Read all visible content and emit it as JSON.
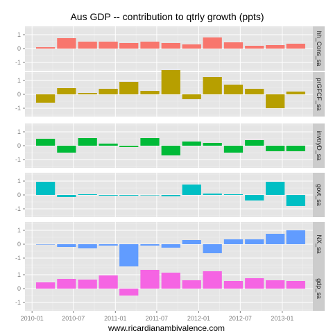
{
  "chart_data": {
    "type": "bar",
    "title": "Aus GDP -- contribution to qtrly growth (ppts)",
    "xlabel": "www.ricardianambivalence.com",
    "ylabel": "",
    "ylim": [
      -1.6,
      1.6
    ],
    "y_ticks": [
      -1,
      0,
      1
    ],
    "grid": true,
    "x_tick_labels": [
      "2010-01",
      "2010-07",
      "2011-01",
      "2011-07",
      "2012-01",
      "2012-07",
      "2013-01"
    ],
    "x": [
      "2010-03",
      "2010-06",
      "2010-09",
      "2010-12",
      "2011-03",
      "2011-06",
      "2011-09",
      "2011-12",
      "2012-03",
      "2012-06",
      "2012-09",
      "2012-12",
      "2013-03"
    ],
    "series": [
      {
        "name": "hh_Cons_sa",
        "color": "#F8766D",
        "values": [
          0.1,
          0.75,
          0.5,
          0.5,
          0.4,
          0.5,
          0.4,
          0.3,
          0.8,
          0.45,
          0.2,
          0.25,
          0.35
        ]
      },
      {
        "name": "prGFCF_sa",
        "color": "#B79F00",
        "values": [
          -0.6,
          0.45,
          0.1,
          0.4,
          0.9,
          0.25,
          1.75,
          -0.35,
          1.25,
          0.7,
          0.4,
          -1.0,
          0.2
        ]
      },
      {
        "name": "invtryD_sa",
        "color": "#00BA38",
        "values": [
          0.5,
          -0.5,
          0.55,
          0.15,
          -0.1,
          0.55,
          -0.7,
          0.3,
          0.2,
          -0.5,
          0.4,
          -0.4,
          -0.4
        ]
      },
      {
        "name": "govt_sa",
        "color": "#00BFC4",
        "values": [
          0.95,
          -0.15,
          0.05,
          -0.05,
          -0.05,
          0.0,
          -0.1,
          0.75,
          0.1,
          0.05,
          -0.4,
          0.95,
          -0.8
        ]
      },
      {
        "name": "NX_sa",
        "color": "#619CFF",
        "values": [
          0.0,
          -0.2,
          -0.3,
          -0.1,
          -1.75,
          -0.1,
          -0.25,
          0.3,
          -0.65,
          0.35,
          0.35,
          0.75,
          1.0
        ]
      },
      {
        "name": "gdp_sa",
        "color": "#F564E3",
        "values": [
          0.45,
          0.7,
          0.65,
          0.95,
          -0.5,
          1.35,
          1.15,
          0.6,
          1.25,
          0.55,
          0.75,
          0.6,
          0.55
        ]
      }
    ]
  }
}
